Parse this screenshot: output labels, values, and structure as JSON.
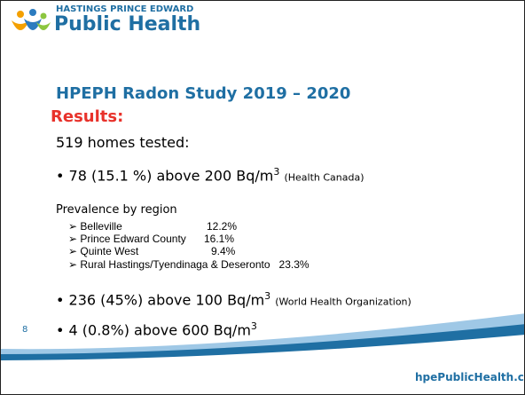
{
  "logo": {
    "top": "HASTINGS PRINCE EDWARD",
    "name": "Public Health"
  },
  "title": "HPEPH Radon Study 2019 – 2020",
  "subtitle": "Results:",
  "intro": "519 homes tested:",
  "bullets": [
    {
      "text": "78 (15.1 %) above 200 Bq/m",
      "sup": "3",
      "note": "(Health Canada)"
    },
    {
      "text": "236 (45%) above 100 Bq/m",
      "sup": "3",
      "note": "(World Health Organization)"
    },
    {
      "text": "4 (0.8%) above 600 Bq/m",
      "sup": "3"
    }
  ],
  "prevalence": {
    "heading": "Prevalence by region",
    "regions": [
      {
        "name": "Belleville",
        "value": "12.2%"
      },
      {
        "name": "Prince Edward County",
        "value": "16.1%"
      },
      {
        "name": "Quinte West",
        "value": "9.4%"
      },
      {
        "name": "Rural Hastings/Tyendinaga & Deseronto",
        "value": "23.3%"
      }
    ]
  },
  "slide_number": "8",
  "footer": "hpePublicHealth.ca"
}
